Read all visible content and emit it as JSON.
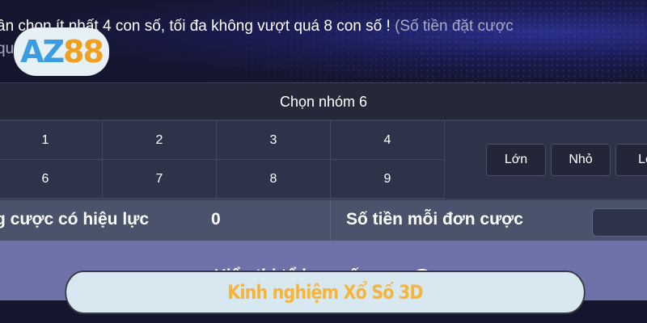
{
  "header": {
    "instruction": "ần chọn ít nhất 4 con số, tối đa không vượt quá 8 con số !",
    "instruction_muted": "(Số tiền đặt cược",
    "instruction_line2": "qu",
    "logo_a": "AZ",
    "logo_b": "88"
  },
  "group": {
    "title": "Chọn nhóm 6"
  },
  "numbers": [
    "1",
    "2",
    "3",
    "4",
    "6",
    "7",
    "8",
    "9"
  ],
  "quick_buttons": [
    "Lớn",
    "Nhỏ",
    "Lẻ"
  ],
  "stats": {
    "valid_bets_label": "g cược có hiệu lực",
    "valid_bets_value": "0",
    "amount_label": "Số tiền mỗi đơn cược"
  },
  "combo": {
    "label": "Hiển thị tổ hợp số cược"
  },
  "banner": {
    "text": "Kinh nghiệm Xổ Số 3D"
  },
  "colors": {
    "banner_text": "#f5b43a",
    "combo_bg": "#6f72a8"
  }
}
